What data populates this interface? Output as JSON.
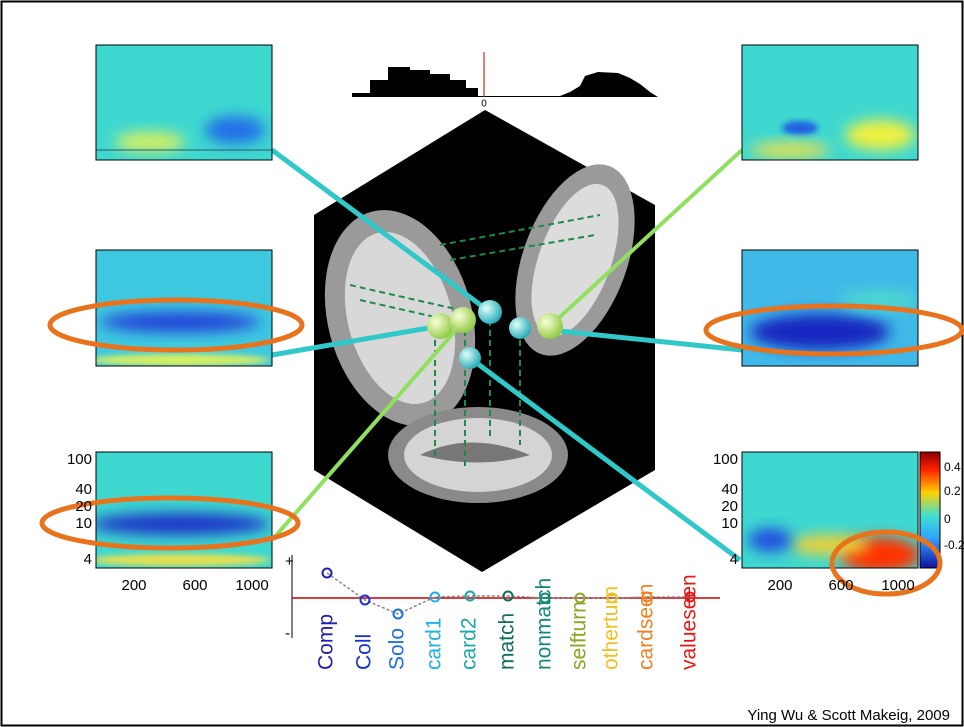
{
  "histogram": {
    "zero_label": "0"
  },
  "left_panel": {
    "yticks": [
      "100",
      "40",
      "20",
      "10",
      "4"
    ],
    "xticks": [
      "200",
      "600",
      "1000"
    ]
  },
  "right_panel": {
    "yticks": [
      "100",
      "40",
      "20",
      "10",
      "4"
    ],
    "xticks": [
      "200",
      "600",
      "1000"
    ]
  },
  "colorbar": {
    "ticks": [
      "0.4",
      "0.2",
      "0",
      "-0.2"
    ]
  },
  "dipole_plot": {
    "plus": "+",
    "minus": "-",
    "conditions": [
      "Comp",
      "Coll",
      "Solo",
      "card1",
      "card2",
      "match",
      "nonmatch",
      "selfturn",
      "otherturn",
      "cardseen",
      "valueseen"
    ]
  },
  "credit": "Ying Wu & Scott Makeig, 2009"
}
